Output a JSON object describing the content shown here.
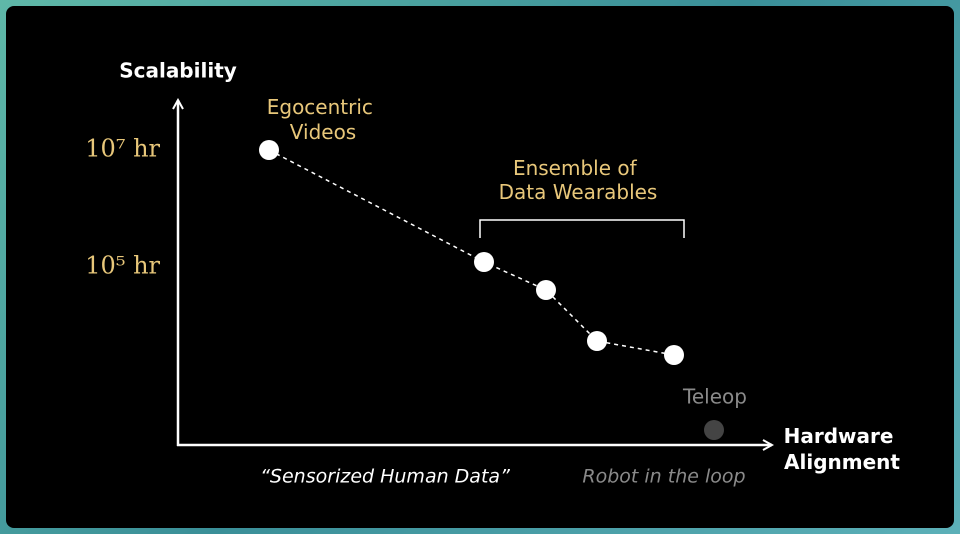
{
  "y_axis": {
    "label": "Scalability",
    "ticks": [
      "10⁷ hr",
      "10⁵ hr"
    ]
  },
  "x_axis": {
    "label": [
      "Hardware",
      "Alignment"
    ],
    "regions": [
      "“Sensorized Human Data”",
      "Robot in the loop"
    ]
  },
  "nodes": [
    {
      "label": [
        "Egocentric",
        "Videos"
      ]
    },
    {
      "label": "Teleop"
    }
  ],
  "group": {
    "label": [
      "Ensemble of",
      "Data Wearables"
    ]
  }
}
